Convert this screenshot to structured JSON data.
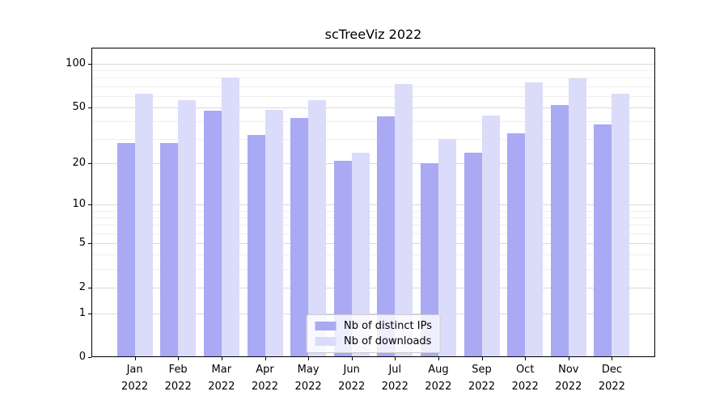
{
  "chart_data": {
    "type": "bar",
    "title": "scTreeViz 2022",
    "categories": [
      "Jan",
      "Feb",
      "Mar",
      "Apr",
      "May",
      "Jun",
      "Jul",
      "Aug",
      "Sep",
      "Oct",
      "Nov",
      "Dec"
    ],
    "category_year": "2022",
    "series": [
      {
        "name": "Nb of distinct IPs",
        "color": "#a9a9f4",
        "values": [
          28,
          28,
          47,
          32,
          42,
          21,
          43,
          20,
          24,
          33,
          52,
          38
        ]
      },
      {
        "name": "Nb of downloads",
        "color": "#dbdbfa",
        "values": [
          62,
          56,
          80,
          48,
          56,
          24,
          72,
          30,
          44,
          74,
          79,
          62
        ]
      }
    ],
    "y_axis": {
      "scale": "symlog (log1p)",
      "ticks": [
        0,
        1,
        2,
        5,
        10,
        20,
        50,
        100
      ],
      "minor_ticks": [
        3,
        4,
        6,
        7,
        8,
        9,
        30,
        40,
        60,
        70,
        80,
        90
      ],
      "max": 129,
      "grid": true
    },
    "legend": {
      "position": "lower center",
      "entries": [
        "Nb of distinct IPs",
        "Nb of downloads"
      ]
    },
    "colors": {
      "major_grid": "#d9d9d9",
      "minor_grid": "#efefef",
      "spine": "#000000",
      "text": "#000000"
    }
  }
}
